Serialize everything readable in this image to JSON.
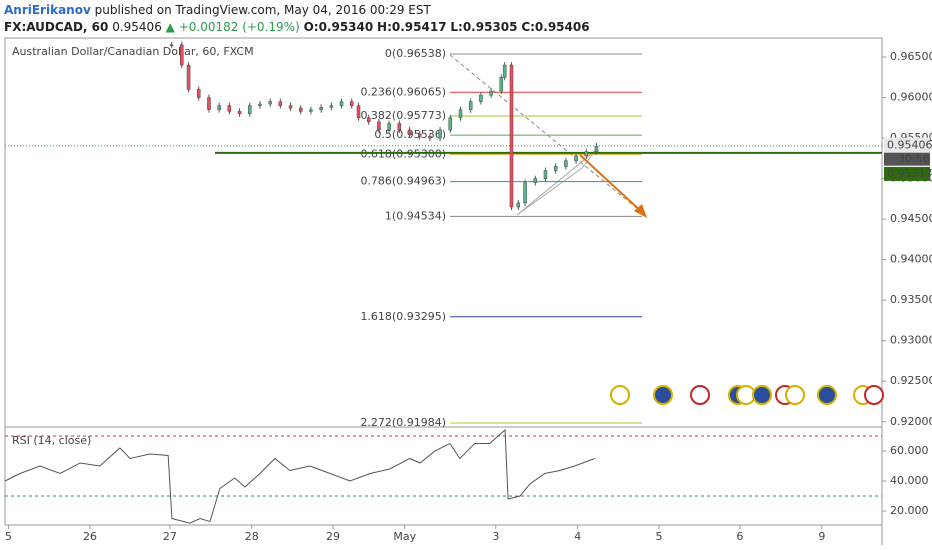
{
  "header": {
    "author": "AnriErikanov",
    "published": "published on TradingView.com, May 04, 2016 00:29 EST",
    "symbol": "FX:AUDCAD, 60",
    "last": "0.95406",
    "change": "▲ +0.00182 (+0.19%)",
    "open": "O:0.95340",
    "high": "H:0.95417",
    "low": "L:0.95305",
    "close": "C:0.95406"
  },
  "chart_data": [
    {
      "type": "candlestick",
      "title": "Australian Dollar/Canadian Dollar, 60, FXCM",
      "up_color": "#53b987",
      "down_color": "#eb4d5c",
      "x": [
        49,
        52,
        54,
        57,
        60,
        63,
        66,
        69,
        72,
        75,
        78,
        81,
        84,
        87,
        90,
        93,
        96,
        99,
        102,
        104,
        107,
        110,
        113,
        116,
        119,
        122,
        125,
        128,
        131,
        134,
        137,
        140,
        143,
        146,
        147,
        149,
        151,
        153,
        156,
        159,
        162,
        165,
        168,
        171,
        174
      ],
      "values": [
        0.9665,
        0.964,
        0.961,
        0.96,
        0.9585,
        0.959,
        0.9583,
        0.958,
        0.959,
        0.9592,
        0.9595,
        0.959,
        0.9587,
        0.9583,
        0.9585,
        0.9588,
        0.959,
        0.9595,
        0.959,
        0.9575,
        0.957,
        0.956,
        0.9568,
        0.956,
        0.9555,
        0.9552,
        0.955,
        0.956,
        0.9575,
        0.9585,
        0.9595,
        0.9603,
        0.9608,
        0.9625,
        0.964,
        0.9465,
        0.947,
        0.9495,
        0.95,
        0.951,
        0.9515,
        0.9522,
        0.9528,
        0.9533,
        0.954
      ],
      "xlim": [
        0,
        258
      ],
      "ylim": [
        0.9196,
        0.9671
      ],
      "yticks": [
        {
          "value": 0.965,
          "label": "0.96500"
        },
        {
          "value": 0.96,
          "label": "0.96000"
        },
        {
          "value": 0.955,
          "label": "0.95500"
        },
        {
          "value": 0.95,
          "label": "0.95000"
        },
        {
          "value": 0.945,
          "label": "0.94500"
        },
        {
          "value": 0.94,
          "label": "0.94000"
        },
        {
          "value": 0.935,
          "label": "0.93500"
        },
        {
          "value": 0.93,
          "label": "0.93000"
        },
        {
          "value": 0.925,
          "label": "0.92500"
        },
        {
          "value": 0.92,
          "label": "0.92000"
        }
      ],
      "fib_levels": [
        {
          "value": 0.96538,
          "label": "0(0.96538)",
          "color": "#888888"
        },
        {
          "value": 0.96065,
          "label": "0.236(0.96065)",
          "color": "#e53935"
        },
        {
          "value": 0.95773,
          "label": "0.382(0.95773)",
          "color": "#9ccc2a"
        },
        {
          "value": 0.95536,
          "label": "0.5(0.95536)",
          "color": "#4caf50"
        },
        {
          "value": 0.953,
          "label": "0.618(0.95300)",
          "color": "#e6a817"
        },
        {
          "value": 0.94963,
          "label": "0.786(0.94963)",
          "color": "#2196b3"
        },
        {
          "value": 0.94534,
          "label": "1(0.94534)",
          "color": "#888888"
        },
        {
          "value": 1.618,
          "label": "",
          "color": "#3f3fa8"
        }
      ],
      "extension_levels": [
        {
          "value": 0.93295,
          "label": "1.618(0.93295)",
          "color": "#3f3fa8"
        },
        {
          "value": 0.91984,
          "label": "2.272(0.91984)",
          "color": "#b8c43a"
        }
      ],
      "last_price": {
        "value": 0.95406,
        "label": "0.95406"
      },
      "countdown": "30:56",
      "level_line": {
        "value": 0.95317,
        "label": "0.95317",
        "color": "#2e6b0f"
      }
    },
    {
      "type": "line",
      "title": "RSI (14, close)",
      "color": "#555555",
      "x": [
        0,
        4.4,
        10.3,
        16.2,
        22.1,
        27.9,
        33.8,
        36.8,
        42.6,
        48,
        49.1,
        54.4,
        57.4,
        60.3,
        63.2,
        67.6,
        70.6,
        75,
        79.4,
        83.8,
        89.7,
        95.6,
        101.5,
        107.4,
        113.2,
        119.1,
        122.1,
        126.5,
        130.9,
        133.8,
        138.2,
        142.6,
        147.1,
        148,
        151.5,
        154.4,
        158.8,
        163.2,
        167.6,
        173.5
      ],
      "values": [
        40,
        45,
        50,
        45,
        52,
        50,
        62,
        55,
        58,
        57,
        15,
        12,
        15,
        13,
        35,
        42,
        36,
        45,
        55,
        47,
        50,
        45,
        40,
        45,
        48,
        55,
        52,
        60,
        65,
        55,
        65,
        65,
        74,
        28,
        30,
        38,
        45,
        47,
        50,
        55
      ],
      "xlim": [
        0,
        258
      ],
      "ylim": [
        10.7,
        75.3
      ],
      "yticks": [
        {
          "value": 60,
          "label": "60.000"
        },
        {
          "value": 40,
          "label": "40.000"
        },
        {
          "value": 20,
          "label": "20.000"
        }
      ],
      "bands": [
        {
          "value": 70,
          "color": "#d32f2f"
        },
        {
          "value": 30,
          "color": "#388e3c"
        }
      ],
      "xticks": [
        {
          "value": 1,
          "label": "5"
        },
        {
          "value": 25,
          "label": "26"
        },
        {
          "value": 48.5,
          "label": "27"
        },
        {
          "value": 72.6,
          "label": "28"
        },
        {
          "value": 96.5,
          "label": "29"
        },
        {
          "value": 117.6,
          "label": "May"
        },
        {
          "value": 144.4,
          "label": "3"
        },
        {
          "value": 168.5,
          "label": "4"
        },
        {
          "value": 192.4,
          "label": "5"
        },
        {
          "value": 216.2,
          "label": "6"
        },
        {
          "value": 240.3,
          "label": "9"
        }
      ]
    }
  ]
}
